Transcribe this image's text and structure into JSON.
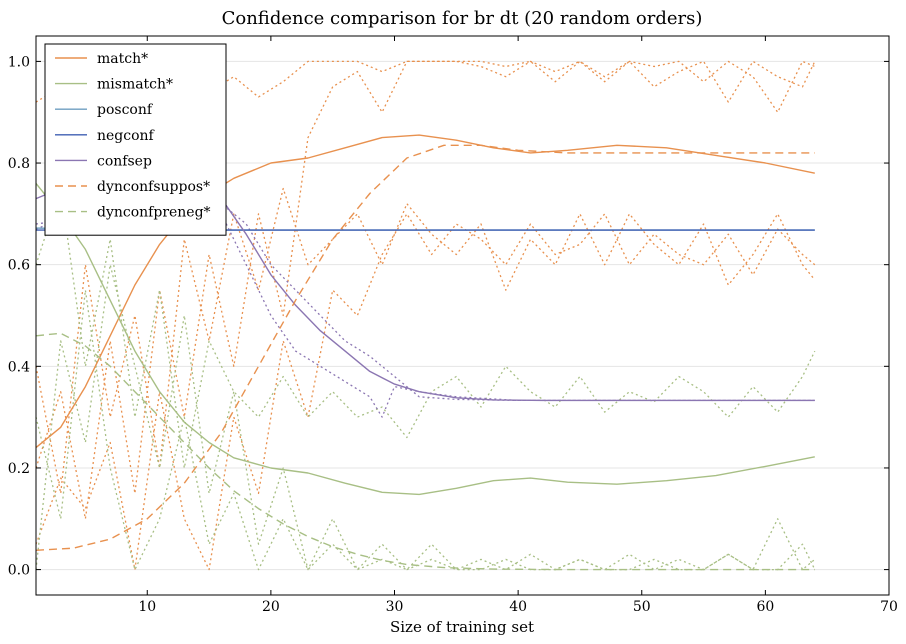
{
  "chart_data": {
    "type": "line",
    "title": "Confidence comparison for br dt (20 random orders)",
    "xlabel": "Size of training set",
    "ylabel": "",
    "xlim": [
      1,
      70
    ],
    "ylim": [
      -0.05,
      1.05
    ],
    "xticks": [
      "10",
      "20",
      "30",
      "40",
      "50",
      "60",
      "70"
    ],
    "yticks": [
      "0.0",
      "0.2",
      "0.4",
      "0.6",
      "0.8",
      "1.0"
    ],
    "grid": "horizontal",
    "legend_position": "top-left",
    "series": [
      {
        "name": "match*",
        "color": "#e8914f",
        "style": "solid",
        "x": [
          1,
          3,
          5,
          7,
          9,
          11,
          13,
          15,
          17,
          20,
          23,
          26,
          29,
          32,
          35,
          38,
          41,
          44,
          48,
          52,
          56,
          60,
          64
        ],
        "y": [
          0.24,
          0.28,
          0.36,
          0.46,
          0.56,
          0.64,
          0.7,
          0.74,
          0.77,
          0.8,
          0.81,
          0.83,
          0.85,
          0.855,
          0.845,
          0.83,
          0.82,
          0.825,
          0.835,
          0.83,
          0.815,
          0.8,
          0.78
        ]
      },
      {
        "name": "mismatch*",
        "color": "#a8bf85",
        "style": "solid",
        "x": [
          1,
          3,
          5,
          7,
          9,
          11,
          13,
          15,
          17,
          20,
          23,
          26,
          29,
          32,
          35,
          38,
          41,
          44,
          48,
          52,
          56,
          60,
          64
        ],
        "y": [
          0.76,
          0.7,
          0.63,
          0.53,
          0.43,
          0.35,
          0.29,
          0.25,
          0.22,
          0.2,
          0.19,
          0.17,
          0.152,
          0.148,
          0.16,
          0.175,
          0.18,
          0.172,
          0.168,
          0.175,
          0.185,
          0.203,
          0.222
        ]
      },
      {
        "name": "posconf",
        "color": "#6e9ec0",
        "style": "solid",
        "x": [
          1,
          5,
          10,
          15,
          20,
          30,
          40,
          50,
          64
        ],
        "y": [
          0.672,
          0.67,
          0.669,
          0.668,
          0.668,
          0.668,
          0.668,
          0.668,
          0.668
        ]
      },
      {
        "name": "negconf",
        "color": "#3f5fb3",
        "style": "solid",
        "x": [
          1,
          5,
          10,
          15,
          20,
          30,
          40,
          50,
          64
        ],
        "y": [
          0.668,
          0.668,
          0.668,
          0.668,
          0.668,
          0.668,
          0.668,
          0.668,
          0.668
        ]
      },
      {
        "name": "confsep",
        "color": "#8b76b2",
        "style": "solid",
        "x": [
          1,
          4,
          7,
          10,
          13,
          16,
          18,
          20,
          22,
          24,
          26,
          28,
          30,
          32,
          35,
          38,
          42,
          50,
          64
        ],
        "y": [
          0.73,
          0.76,
          0.77,
          0.775,
          0.77,
          0.73,
          0.66,
          0.58,
          0.52,
          0.47,
          0.43,
          0.39,
          0.365,
          0.35,
          0.338,
          0.334,
          0.333,
          0.333,
          0.333
        ]
      },
      {
        "name": "dynconfsuppos*",
        "color": "#e8914f",
        "style": "dashed",
        "x": [
          1,
          4,
          7,
          10,
          13,
          16,
          19,
          22,
          25,
          28,
          31,
          34,
          37,
          40,
          44,
          50,
          64
        ],
        "y": [
          0.038,
          0.042,
          0.06,
          0.1,
          0.17,
          0.27,
          0.4,
          0.53,
          0.65,
          0.74,
          0.81,
          0.835,
          0.835,
          0.825,
          0.82,
          0.82,
          0.82
        ]
      },
      {
        "name": "dynconfpreneg*",
        "color": "#a8bf85",
        "style": "dashed",
        "x": [
          1,
          3,
          5,
          7,
          9,
          11,
          13,
          15,
          17,
          19,
          21,
          23,
          25,
          27,
          29,
          31,
          34,
          38,
          44,
          64
        ],
        "y": [
          0.46,
          0.465,
          0.44,
          0.4,
          0.35,
          0.3,
          0.25,
          0.2,
          0.155,
          0.12,
          0.09,
          0.065,
          0.045,
          0.03,
          0.018,
          0.01,
          0.004,
          0.001,
          0.0,
          0.0
        ]
      }
    ],
    "background_series": [
      {
        "color": "#e8914f",
        "style": "dotted",
        "x": [
          1,
          3,
          5,
          7,
          9,
          11,
          13,
          15,
          17,
          19,
          21,
          23,
          25,
          27,
          29,
          31,
          33,
          35,
          37,
          39,
          41,
          43,
          45,
          47,
          49,
          51,
          53,
          55,
          57,
          59,
          61,
          63,
          64
        ],
        "y": [
          0.92,
          0.95,
          0.9,
          0.93,
          0.96,
          0.92,
          0.95,
          0.94,
          0.97,
          0.93,
          0.96,
          1.0,
          1.0,
          1.0,
          0.98,
          1.0,
          1.0,
          1.0,
          1.0,
          0.99,
          1.0,
          0.96,
          1.0,
          0.97,
          1.0,
          0.99,
          1.0,
          0.96,
          1.0,
          0.97,
          0.9,
          1.0,
          0.99
        ]
      },
      {
        "color": "#e8914f",
        "style": "dotted",
        "x": [
          1,
          3,
          5,
          7,
          9,
          11,
          13,
          15,
          17,
          19,
          21,
          23,
          25,
          27,
          29,
          31,
          33,
          35,
          37,
          39,
          41,
          43,
          45,
          47,
          49,
          51,
          53,
          55,
          57,
          59,
          61,
          63,
          64
        ],
        "y": [
          0.2,
          0.35,
          0.1,
          0.45,
          0.15,
          0.55,
          0.3,
          0.62,
          0.4,
          0.7,
          0.5,
          0.85,
          0.95,
          0.98,
          0.9,
          1.0,
          1.0,
          1.0,
          0.99,
          0.97,
          1.0,
          0.98,
          1.0,
          0.96,
          1.0,
          0.95,
          0.98,
          1.0,
          0.92,
          1.0,
          0.97,
          0.95,
          1.0
        ]
      },
      {
        "color": "#e8914f",
        "style": "dotted",
        "x": [
          1,
          3,
          5,
          7,
          9,
          11,
          13,
          15,
          17,
          19,
          21,
          23,
          25,
          27,
          29,
          31,
          33,
          35,
          37,
          39,
          41,
          43,
          45,
          47,
          49,
          51,
          53,
          55,
          57,
          59,
          61,
          63,
          64
        ],
        "y": [
          0.4,
          0.15,
          0.6,
          0.3,
          0.5,
          0.2,
          0.65,
          0.45,
          0.7,
          0.55,
          0.75,
          0.6,
          0.65,
          0.7,
          0.6,
          0.72,
          0.66,
          0.62,
          0.68,
          0.55,
          0.65,
          0.6,
          0.7,
          0.6,
          0.7,
          0.64,
          0.6,
          0.68,
          0.56,
          0.62,
          0.7,
          0.6,
          0.57
        ]
      },
      {
        "color": "#e8914f",
        "style": "dotted",
        "x": [
          1,
          3,
          5,
          7,
          9,
          11,
          13,
          15,
          17,
          19,
          21,
          23,
          25,
          27,
          29,
          31,
          33,
          35,
          37,
          39,
          41,
          43,
          45,
          47,
          49,
          51,
          53,
          55,
          57,
          59,
          61,
          63,
          64
        ],
        "y": [
          0.05,
          0.18,
          0.12,
          0.25,
          0.0,
          0.35,
          0.1,
          0.0,
          0.3,
          0.15,
          0.45,
          0.3,
          0.55,
          0.5,
          0.62,
          0.7,
          0.62,
          0.68,
          0.65,
          0.6,
          0.68,
          0.62,
          0.64,
          0.7,
          0.6,
          0.66,
          0.62,
          0.6,
          0.66,
          0.58,
          0.67,
          0.62,
          0.6
        ]
      },
      {
        "color": "#a8bf85",
        "style": "dotted",
        "x": [
          1,
          3,
          5,
          7,
          9,
          11,
          13,
          15,
          17,
          19,
          21,
          23,
          25,
          27,
          29,
          31,
          33,
          35,
          37,
          39,
          41,
          43,
          45,
          47,
          49,
          51,
          53,
          55,
          57,
          59,
          61,
          63,
          64
        ],
        "y": [
          0.6,
          0.75,
          0.4,
          0.65,
          0.3,
          0.55,
          0.2,
          0.45,
          0.35,
          0.3,
          0.38,
          0.3,
          0.35,
          0.3,
          0.32,
          0.26,
          0.35,
          0.38,
          0.32,
          0.4,
          0.35,
          0.32,
          0.38,
          0.31,
          0.35,
          0.33,
          0.38,
          0.35,
          0.3,
          0.36,
          0.31,
          0.38,
          0.43
        ]
      },
      {
        "color": "#a8bf85",
        "style": "dotted",
        "x": [
          1,
          3,
          5,
          7,
          9,
          11,
          13,
          15,
          17,
          19,
          21,
          23,
          25,
          27,
          29,
          31,
          33,
          35,
          37,
          39,
          41,
          43,
          45,
          47,
          49,
          51,
          53,
          55,
          57,
          59,
          61,
          63,
          64
        ],
        "y": [
          0.3,
          0.1,
          0.55,
          0.2,
          0.0,
          0.1,
          0.3,
          0.05,
          0.15,
          0.0,
          0.1,
          0.0,
          0.05,
          0.0,
          0.02,
          0.0,
          0.05,
          0.0,
          0.02,
          0.0,
          0.03,
          0.0,
          0.02,
          0.0,
          0.03,
          0.0,
          0.02,
          0.0,
          0.03,
          0.0,
          0.1,
          0.0,
          0.02
        ]
      },
      {
        "color": "#a8bf85",
        "style": "dotted",
        "x": [
          1,
          3,
          5,
          7,
          9,
          11,
          13,
          15,
          17,
          19,
          21,
          23,
          25,
          27,
          29,
          31,
          33,
          35,
          37,
          39,
          41,
          43,
          45,
          47,
          49,
          51,
          53,
          55,
          57,
          59,
          61,
          63,
          64
        ],
        "y": [
          0.0,
          0.45,
          0.25,
          0.6,
          0.4,
          0.2,
          0.5,
          0.15,
          0.35,
          0.05,
          0.2,
          0.0,
          0.1,
          0.0,
          0.05,
          0.0,
          0.02,
          0.0,
          0.0,
          0.02,
          0.0,
          0.0,
          0.02,
          0.0,
          0.0,
          0.02,
          0.0,
          0.0,
          0.03,
          0.0,
          0.0,
          0.05,
          0.0
        ]
      },
      {
        "color": "#8b76b2",
        "style": "dotted",
        "x": [
          1,
          4,
          7,
          10,
          13,
          16,
          18,
          20,
          22,
          24,
          26,
          28,
          29,
          30,
          32,
          35,
          40,
          50,
          64
        ],
        "y": [
          0.68,
          0.69,
          0.7,
          0.72,
          0.74,
          0.7,
          0.6,
          0.5,
          0.43,
          0.4,
          0.37,
          0.34,
          0.3,
          0.36,
          0.35,
          0.34,
          0.333,
          0.333,
          0.333
        ]
      },
      {
        "color": "#8b76b2",
        "style": "dotted",
        "x": [
          1,
          4,
          7,
          10,
          13,
          16,
          18,
          20,
          22,
          24,
          26,
          28,
          30,
          32,
          35,
          40,
          50,
          64
        ],
        "y": [
          0.67,
          0.7,
          0.72,
          0.74,
          0.76,
          0.72,
          0.68,
          0.6,
          0.55,
          0.5,
          0.45,
          0.42,
          0.38,
          0.34,
          0.335,
          0.333,
          0.333,
          0.333
        ]
      }
    ]
  }
}
